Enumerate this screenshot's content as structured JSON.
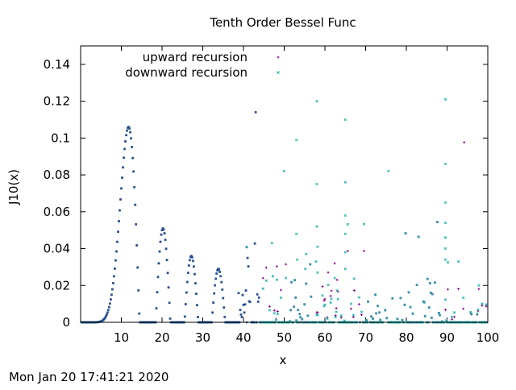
{
  "footer": {
    "timestamp": "Mon Jan 20 17:41:21 2020"
  },
  "chart_data": {
    "type": "scatter",
    "title": "Tenth Order Bessel Func",
    "xlabel": "x",
    "ylabel": "J10(x)",
    "xlim": [
      0,
      100
    ],
    "ylim": [
      0,
      0.15
    ],
    "x_ticks": [
      {
        "value": 10,
        "label": "10"
      },
      {
        "value": 20,
        "label": "20"
      },
      {
        "value": 30,
        "label": "30"
      },
      {
        "value": 40,
        "label": "40"
      },
      {
        "value": 50,
        "label": "50"
      },
      {
        "value": 60,
        "label": "60"
      },
      {
        "value": 70,
        "label": "70"
      },
      {
        "value": 80,
        "label": "80"
      },
      {
        "value": 90,
        "label": "90"
      },
      {
        "value": 100,
        "label": "100"
      }
    ],
    "y_ticks": [
      {
        "value": 0,
        "label": "0"
      },
      {
        "value": 0.02,
        "label": "0.02"
      },
      {
        "value": 0.04,
        "label": "0.04"
      },
      {
        "value": 0.06,
        "label": "0.06"
      },
      {
        "value": 0.08,
        "label": "0.08"
      },
      {
        "value": 0.1,
        "label": "0.1"
      },
      {
        "value": 0.12,
        "label": "0.12"
      },
      {
        "value": 0.14,
        "label": "0.14"
      }
    ],
    "grid": false,
    "legend_position": "top-right",
    "sampling": {
      "x_start": 0.2,
      "x_end": 99.8,
      "step": 0.2
    },
    "series": [
      {
        "name": "upward recursion",
        "marker": "plus",
        "color": "#8b008b",
        "peaks": [
          {
            "x": 12.3,
            "y": 0.106
          },
          {
            "x": 20.9,
            "y": 0.051
          },
          {
            "x": 27.8,
            "y": 0.036
          },
          {
            "x": 34.6,
            "y": 0.029
          },
          {
            "x": 41.3,
            "y": 0.024
          },
          {
            "x": 47.9,
            "y": 0.021
          },
          {
            "x": 54.3,
            "y": 0.019
          },
          {
            "x": 60.6,
            "y": 0.016
          },
          {
            "x": 67.0,
            "y": 0.016
          },
          {
            "x": 73.2,
            "y": 0.013
          },
          {
            "x": 79.6,
            "y": 0.012
          },
          {
            "x": 86.0,
            "y": 0.011
          },
          {
            "x": 92.3,
            "y": 0.011
          },
          {
            "x": 98.8,
            "y": 0.009
          }
        ]
      },
      {
        "name": "downward recursion",
        "marker": "cross",
        "color": "#20b2aa",
        "peaks": [
          {
            "x": 12.3,
            "y": 0.106
          },
          {
            "x": 20.9,
            "y": 0.051
          },
          {
            "x": 27.8,
            "y": 0.036
          },
          {
            "x": 34.6,
            "y": 0.029
          },
          {
            "x": 41.3,
            "y": 0.024
          },
          {
            "x": 47.9,
            "y": 0.016
          },
          {
            "x": 54.3,
            "y": 0.019
          },
          {
            "x": 60.6,
            "y": 0.012
          },
          {
            "x": 67.0,
            "y": 0.022
          },
          {
            "x": 73.2,
            "y": 0.013
          },
          {
            "x": 79.6,
            "y": 0.012
          },
          {
            "x": 86.0,
            "y": 0.011
          },
          {
            "x": 92.3,
            "y": 0.02
          },
          {
            "x": 98.8,
            "y": 0.01
          }
        ],
        "outliers": [
          {
            "x": 47.0,
            "y": 0.043
          },
          {
            "x": 47.2,
            "y": 0.025
          },
          {
            "x": 50.0,
            "y": 0.082
          },
          {
            "x": 53.0,
            "y": 0.099
          },
          {
            "x": 53.0,
            "y": 0.048
          },
          {
            "x": 53.2,
            "y": 0.034
          },
          {
            "x": 55.4,
            "y": 0.037
          },
          {
            "x": 55.2,
            "y": 0.029
          },
          {
            "x": 58.0,
            "y": 0.12
          },
          {
            "x": 58.0,
            "y": 0.075
          },
          {
            "x": 58.0,
            "y": 0.052
          },
          {
            "x": 58.2,
            "y": 0.041
          },
          {
            "x": 57.8,
            "y": 0.033
          },
          {
            "x": 58.2,
            "y": 0.027
          },
          {
            "x": 65.0,
            "y": 0.11
          },
          {
            "x": 65.0,
            "y": 0.076
          },
          {
            "x": 65.0,
            "y": 0.058
          },
          {
            "x": 65.0,
            "y": 0.048
          },
          {
            "x": 65.0,
            "y": 0.038
          },
          {
            "x": 65.0,
            "y": 0.029
          },
          {
            "x": 75.6,
            "y": 0.082
          },
          {
            "x": 89.6,
            "y": 0.121
          },
          {
            "x": 89.6,
            "y": 0.086
          },
          {
            "x": 89.6,
            "y": 0.065
          },
          {
            "x": 89.6,
            "y": 0.054
          },
          {
            "x": 89.6,
            "y": 0.046
          },
          {
            "x": 89.6,
            "y": 0.04
          },
          {
            "x": 89.6,
            "y": 0.034
          }
        ]
      }
    ]
  }
}
